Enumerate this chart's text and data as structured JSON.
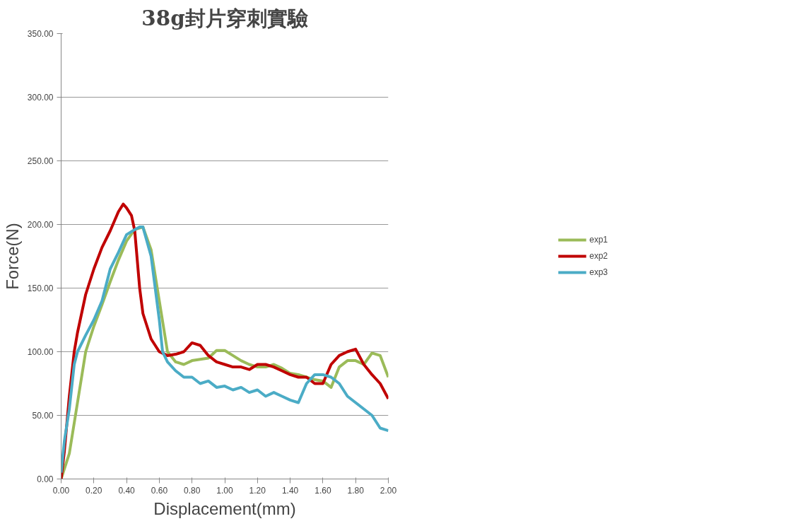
{
  "chart_data": {
    "type": "line",
    "title": "38g封片穿刺實驗",
    "xlabel": "Displacement(mm)",
    "ylabel": "Force(N)",
    "xlim": [
      0,
      2
    ],
    "ylim": [
      0,
      350
    ],
    "xticks": [
      {
        "value": 0,
        "label": "0.00"
      },
      {
        "value": 0.2,
        "label": "0.20"
      },
      {
        "value": 0.4,
        "label": "0.40"
      },
      {
        "value": 0.6,
        "label": "0.60"
      },
      {
        "value": 0.8,
        "label": "0.80"
      },
      {
        "value": 1.0,
        "label": "1.00"
      },
      {
        "value": 1.2,
        "label": "1.20"
      },
      {
        "value": 1.4,
        "label": "1.40"
      },
      {
        "value": 1.6,
        "label": "1.60"
      },
      {
        "value": 1.8,
        "label": "1.80"
      },
      {
        "value": 2.0,
        "label": "2.00"
      }
    ],
    "yticks": [
      {
        "value": 0,
        "label": "0.00"
      },
      {
        "value": 50,
        "label": "50.00"
      },
      {
        "value": 100,
        "label": "100.00"
      },
      {
        "value": 150,
        "label": "150.00"
      },
      {
        "value": 200,
        "label": "200.00"
      },
      {
        "value": 250,
        "label": "250.00"
      },
      {
        "value": 300,
        "label": "300.00"
      },
      {
        "value": 350,
        "label": "350.00"
      }
    ],
    "grid": "y",
    "legend": "right",
    "line_style": "solid",
    "series": [
      {
        "name": "exp1",
        "color": "#9bbb59",
        "x": [
          0,
          0.05,
          0.1,
          0.15,
          0.2,
          0.25,
          0.3,
          0.35,
          0.4,
          0.45,
          0.5,
          0.55,
          0.6,
          0.65,
          0.7,
          0.75,
          0.8,
          0.85,
          0.9,
          0.95,
          1.0,
          1.05,
          1.1,
          1.15,
          1.2,
          1.25,
          1.3,
          1.35,
          1.4,
          1.45,
          1.5,
          1.55,
          1.6,
          1.65,
          1.7,
          1.75,
          1.8,
          1.85,
          1.9,
          1.95,
          2.0
        ],
        "values": [
          0,
          20,
          60,
          100,
          120,
          137,
          155,
          172,
          187,
          196,
          198,
          180,
          140,
          100,
          92,
          90,
          93,
          94,
          95,
          101,
          101,
          97,
          93,
          90,
          88,
          88,
          90,
          87,
          83,
          82,
          80,
          78,
          77,
          72,
          88,
          93,
          93,
          90,
          99,
          97,
          80
        ]
      },
      {
        "name": "exp2",
        "color": "#c00000",
        "x": [
          0,
          0.02,
          0.05,
          0.08,
          0.1,
          0.15,
          0.2,
          0.25,
          0.3,
          0.35,
          0.38,
          0.4,
          0.43,
          0.45,
          0.48,
          0.5,
          0.55,
          0.6,
          0.65,
          0.7,
          0.75,
          0.8,
          0.85,
          0.9,
          0.95,
          1.0,
          1.05,
          1.1,
          1.15,
          1.2,
          1.25,
          1.3,
          1.35,
          1.4,
          1.45,
          1.5,
          1.55,
          1.6,
          1.65,
          1.7,
          1.75,
          1.8,
          1.85,
          1.9,
          1.95,
          2.0
        ],
        "values": [
          0,
          22,
          65,
          100,
          115,
          145,
          165,
          182,
          195,
          210,
          216,
          213,
          207,
          195,
          150,
          130,
          110,
          100,
          97,
          98,
          100,
          107,
          105,
          97,
          92,
          90,
          88,
          88,
          86,
          90,
          90,
          88,
          85,
          82,
          80,
          80,
          75,
          75,
          90,
          97,
          100,
          102,
          90,
          82,
          75,
          63
        ]
      },
      {
        "name": "exp3",
        "color": "#4bacc6",
        "x": [
          0,
          0.02,
          0.05,
          0.08,
          0.1,
          0.15,
          0.2,
          0.25,
          0.3,
          0.35,
          0.4,
          0.45,
          0.48,
          0.5,
          0.55,
          0.6,
          0.62,
          0.65,
          0.7,
          0.75,
          0.8,
          0.85,
          0.9,
          0.95,
          1.0,
          1.05,
          1.1,
          1.15,
          1.2,
          1.25,
          1.3,
          1.35,
          1.4,
          1.45,
          1.5,
          1.55,
          1.6,
          1.65,
          1.7,
          1.75,
          1.8,
          1.85,
          1.9,
          1.95,
          2.0
        ],
        "values": [
          5,
          30,
          55,
          90,
          100,
          113,
          125,
          140,
          165,
          178,
          192,
          196,
          198,
          198,
          175,
          125,
          100,
          92,
          85,
          80,
          80,
          75,
          77,
          72,
          73,
          70,
          72,
          68,
          70,
          65,
          68,
          65,
          62,
          60,
          75,
          82,
          82,
          80,
          75,
          65,
          60,
          55,
          50,
          40,
          38
        ]
      }
    ]
  }
}
